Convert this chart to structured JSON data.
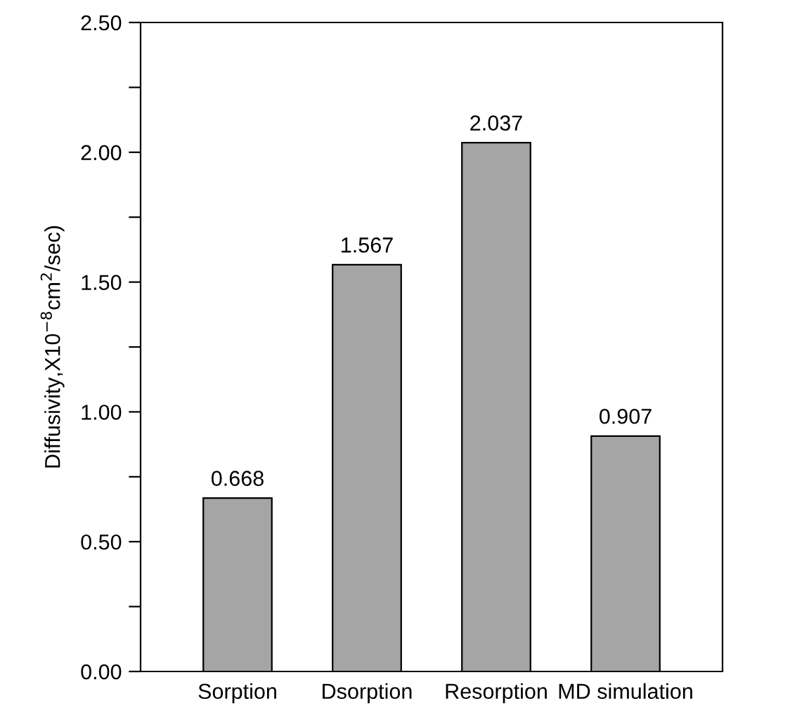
{
  "chart_data": {
    "type": "bar",
    "ylabel": "Diffusivity,X10$^{−8}$cm$^{2}$/sec)",
    "categories": [
      "Sorption",
      "Dsorption",
      "Resorption",
      "MD simulation"
    ],
    "values": [
      0.668,
      1.567,
      2.037,
      0.907
    ],
    "color": "#a5a5a5",
    "ylim": [
      0,
      2.5
    ],
    "yticks": [
      {
        "value": 0,
        "label": "0.00"
      },
      {
        "value": 0.25,
        "label": null
      },
      {
        "value": 0.5,
        "label": "0.50"
      },
      {
        "value": 0.75,
        "label": null
      },
      {
        "value": 1,
        "label": "1.00"
      },
      {
        "value": 1.25,
        "label": null
      },
      {
        "value": 1.5,
        "label": "1.50"
      },
      {
        "value": 1.75,
        "label": null
      },
      {
        "value": 2,
        "label": "2.00"
      },
      {
        "value": 2.25,
        "label": null
      },
      {
        "value": 2.5,
        "label": "2.50"
      }
    ],
    "data_labels": true,
    "grid": false,
    "legend": false
  }
}
